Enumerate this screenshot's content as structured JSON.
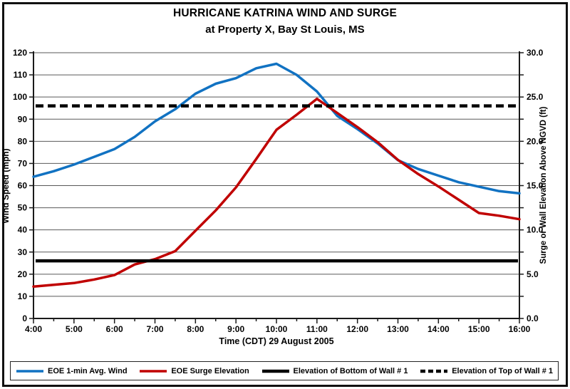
{
  "figure": {
    "title": "HURRICANE KATRINA WIND AND SURGE",
    "subtitle": "at Property X, Bay St Louis, MS"
  },
  "chart_data": {
    "type": "line",
    "title": "HURRICANE KATRINA WIND AND SURGE",
    "subtitle": "at Property X, Bay St Louis, MS",
    "xlabel": "Time (CDT) 29 August 2005",
    "ylabel_left": "Wind Speed (mph)",
    "ylabel_right": "Surge  or Wall Elevation Above NGVD (ft)",
    "x_hours": [
      4,
      4.5,
      5,
      5.5,
      6,
      6.5,
      7,
      7.5,
      8,
      8.5,
      9,
      9.5,
      10,
      10.5,
      11,
      11.5,
      12,
      12.5,
      13,
      13.5,
      14,
      14.5,
      15,
      15.5,
      16
    ],
    "x_major_hours": [
      4,
      5,
      6,
      7,
      8,
      9,
      10,
      11,
      12,
      13,
      14,
      15,
      16
    ],
    "x_major_tick_labels": [
      "4:00",
      "5:00",
      "6:00",
      "7:00",
      "8:00",
      "9:00",
      "10:00",
      "11:00",
      "12:00",
      "13:00",
      "14:00",
      "15:00",
      "16:00"
    ],
    "x_minor_step_hours": 0.5,
    "ylim_left": [
      0,
      120
    ],
    "ytick_step_left": 10,
    "ylim_right": [
      0,
      30
    ],
    "ytick_label_step_right": 5,
    "ytick_minor_step_right": 2.5,
    "right_to_left_scale_factor": 4,
    "grid": "horizontal-only",
    "legend_position": "bottom",
    "colors": {
      "wind": "#1172c2",
      "surge": "#c00000",
      "wall": "#000000",
      "gridline": "#595959",
      "axis": "#1a1a1a"
    },
    "series": [
      {
        "name": "EOE 1-min Avg. Wind",
        "axis": "left",
        "color": "#1172c2",
        "dash": "solid",
        "width": 3.5,
        "values": [
          64,
          66.5,
          69.5,
          73,
          76.5,
          82,
          89,
          94.5,
          101.5,
          106,
          108.5,
          113,
          115,
          110,
          102.5,
          91.5,
          85.5,
          79,
          71.5,
          67.5,
          64.5,
          61.5,
          59.5,
          57.5,
          56.5
        ]
      },
      {
        "name": "EOE Surge Elevation",
        "axis": "right",
        "color": "#c00000",
        "dash": "solid",
        "width": 3.5,
        "values": [
          3.6,
          3.8,
          4.0,
          4.4,
          4.9,
          6.1,
          6.7,
          7.6,
          9.9,
          12.2,
          14.8,
          18.0,
          21.3,
          23.0,
          24.8,
          23.2,
          21.6,
          19.9,
          17.9,
          16.3,
          14.9,
          13.4,
          11.9,
          11.6,
          11.2
        ]
      },
      {
        "name": "Elevation of Bottom of Wall # 1",
        "axis": "right",
        "color": "#000000",
        "dash": "solid",
        "width": 4.5,
        "constant": 6.5
      },
      {
        "name": "Elevation of Top of Wall # 1",
        "axis": "right",
        "color": "#000000",
        "dash": "dashed",
        "width": 4.5,
        "constant": 24.0
      }
    ]
  }
}
